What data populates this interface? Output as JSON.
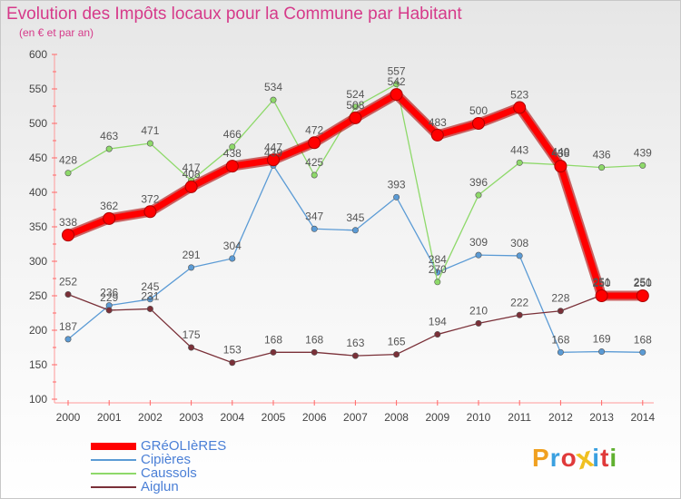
{
  "header": {
    "title": "Evolution des Impôts locaux pour la Commune par Habitant",
    "subtitle": "(en € et par an)"
  },
  "brand": {
    "letters": [
      "P",
      "r",
      "o",
      "x",
      "i",
      "t",
      "i"
    ],
    "colors": [
      "#f0a020",
      "#3aa0e0",
      "#e03a3a",
      "#f0c020",
      "#3aa0e0",
      "#e03a3a",
      "#60b030"
    ]
  },
  "chart_data": {
    "type": "line",
    "title": "Evolution des Impôts locaux pour la Commune par Habitant",
    "subtitle": "(en € et par an)",
    "xlabel": "",
    "ylabel": "",
    "ylim": [
      100,
      600
    ],
    "yticks": [
      100,
      150,
      200,
      250,
      300,
      350,
      400,
      450,
      500,
      550,
      600
    ],
    "grid": false,
    "legend_position": "bottom-left",
    "categories": [
      "2000",
      "2001",
      "2002",
      "2003",
      "2004",
      "2005",
      "2006",
      "2007",
      "2008",
      "2009",
      "2010",
      "2011",
      "2012",
      "2013",
      "2014"
    ],
    "series": [
      {
        "name": "GRéOLIèRES",
        "color": "#ff0000",
        "values": [
          338,
          362,
          372,
          408,
          438,
          447,
          472,
          508,
          542,
          483,
          500,
          523,
          438,
          250,
          250
        ]
      },
      {
        "name": "Cipières",
        "color": "#5b9bd5",
        "values": [
          187,
          236,
          245,
          291,
          304,
          439,
          347,
          345,
          393,
          284,
          309,
          308,
          168,
          169,
          168
        ]
      },
      {
        "name": "Caussols",
        "color": "#8ed96a",
        "values": [
          428,
          463,
          471,
          417,
          466,
          534,
          425,
          524,
          557,
          270,
          396,
          443,
          440,
          436,
          439
        ]
      },
      {
        "name": "Aiglun",
        "color": "#7a3038",
        "values": [
          252,
          229,
          231,
          175,
          153,
          168,
          168,
          163,
          165,
          194,
          210,
          222,
          228,
          251,
          251
        ]
      }
    ]
  }
}
